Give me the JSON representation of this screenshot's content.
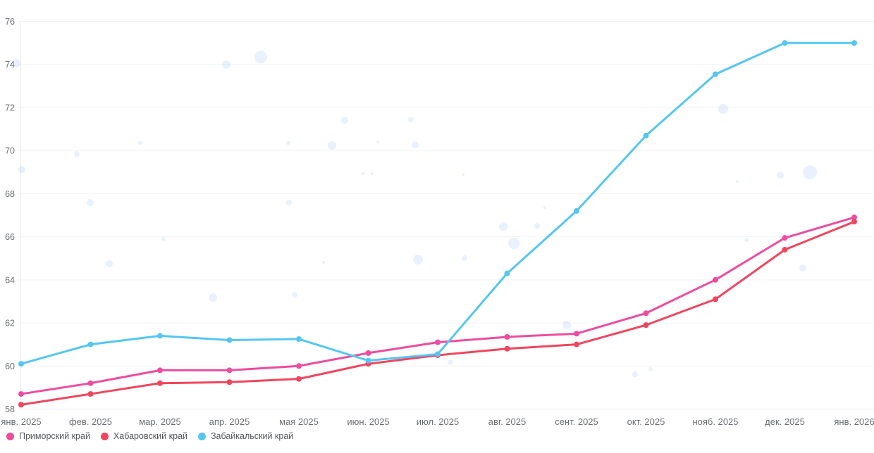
{
  "chart_data": {
    "type": "line",
    "title": "",
    "xlabel": "",
    "ylabel": "",
    "categories": [
      "янв. 2025",
      "фев. 2025",
      "мар. 2025",
      "апр. 2025",
      "мая 2025",
      "июн. 2025",
      "июл. 2025",
      "авг. 2025",
      "сент. 2025",
      "окт. 2025",
      "нояб. 2025",
      "дек. 2025",
      "янв. 2026"
    ],
    "series": [
      {
        "name": "Приморский край",
        "color": "#ed4c9f",
        "values": [
          58.7,
          59.2,
          59.8,
          59.8,
          60.0,
          60.6,
          61.1,
          61.35,
          61.5,
          62.45,
          64.0,
          65.95,
          66.9
        ]
      },
      {
        "name": "Хабаровский край",
        "color": "#f0455e",
        "values": [
          58.2,
          58.7,
          59.2,
          59.25,
          59.4,
          60.1,
          60.5,
          60.8,
          61.0,
          61.9,
          63.1,
          65.4,
          66.7
        ]
      },
      {
        "name": "Забайкальский край",
        "color": "#55c6f2",
        "values": [
          60.1,
          61.0,
          61.4,
          61.2,
          61.25,
          60.25,
          60.55,
          64.3,
          67.2,
          70.7,
          73.55,
          75.0,
          75.0
        ]
      }
    ],
    "ylim": [
      58,
      76
    ],
    "ytick_step": 2,
    "yticks": [
      58,
      60,
      62,
      64,
      66,
      68,
      70,
      72,
      74,
      76
    ],
    "grid": "horizontal",
    "legend_position": "bottom-left",
    "marker": "circle",
    "line_width": 3
  },
  "style": {
    "background": "#ffffff",
    "grid_color": "#f2f3f5",
    "axis_color": "#e7e9ec",
    "tick_label_color": "#6b6f74",
    "legend_text_color": "#55585e",
    "bubble_color": "rgba(110,165,240,0.16)"
  },
  "decor": {
    "bubbles": [
      [
        23,
        90,
        6
      ],
      [
        321,
        92,
        6
      ],
      [
        370,
        81,
        9
      ],
      [
        409,
        203,
        3
      ],
      [
        31,
        241,
        5
      ],
      [
        109,
        219,
        4
      ],
      [
        128,
        288,
        5
      ],
      [
        199,
        203,
        3
      ],
      [
        410,
        288,
        4
      ],
      [
        155,
        375,
        5
      ],
      [
        232,
        340,
        3
      ],
      [
        302,
        423,
        6
      ],
      [
        418,
        419,
        4
      ],
      [
        489,
        171,
        5
      ],
      [
        583,
        170,
        4
      ],
      [
        471,
        207,
        6
      ],
      [
        536,
        201,
        2
      ],
      [
        589,
        206,
        5
      ],
      [
        515,
        247,
        2
      ],
      [
        528,
        247,
        2
      ],
      [
        657,
        248,
        2
      ],
      [
        714,
        322,
        6
      ],
      [
        762,
        321,
        4
      ],
      [
        729,
        346,
        8
      ],
      [
        659,
        367,
        4
      ],
      [
        593,
        369,
        7
      ],
      [
        459,
        373,
        2
      ],
      [
        773,
        295,
        2
      ],
      [
        804,
        462,
        6
      ],
      [
        901,
        532,
        4
      ],
      [
        923,
        525,
        3
      ],
      [
        639,
        515,
        4
      ],
      [
        1026,
        155,
        7
      ],
      [
        1107,
        249,
        5
      ],
      [
        1149,
        245,
        10
      ],
      [
        1139,
        381,
        5
      ],
      [
        1059,
        341,
        3
      ],
      [
        1046,
        258,
        2
      ]
    ]
  }
}
